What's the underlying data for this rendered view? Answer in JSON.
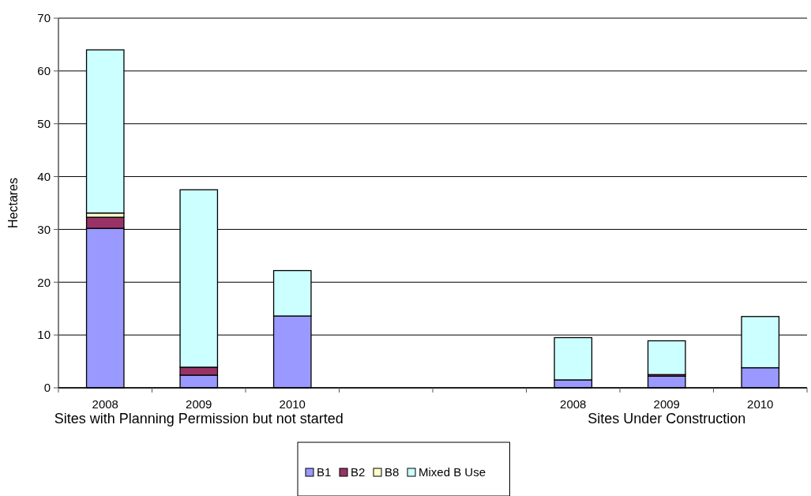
{
  "chart_data": {
    "type": "bar",
    "ylabel": "Hectares",
    "categories": [
      "2008",
      "2009",
      "2010",
      null,
      null,
      "2008",
      "2009",
      "2010"
    ],
    "series": [
      {
        "name": "B1",
        "color": "#9999ff",
        "values": [
          30.2,
          2.4,
          13.6,
          null,
          null,
          1.5,
          2.2,
          3.8
        ]
      },
      {
        "name": "B2",
        "color": "#993366",
        "values": [
          2.1,
          1.5,
          0,
          null,
          null,
          0,
          0.3,
          0
        ]
      },
      {
        "name": "B8",
        "color": "#ffffcc",
        "values": [
          0.8,
          0,
          0,
          null,
          null,
          0,
          0,
          0
        ]
      },
      {
        "name": "Mixed B Use",
        "color": "#ccffff",
        "values": [
          30.9,
          33.6,
          8.6,
          null,
          null,
          8.0,
          6.4,
          9.7
        ]
      }
    ],
    "stacked": true,
    "ylim": [
      0,
      70
    ],
    "yticks": [
      0,
      10,
      20,
      30,
      40,
      50,
      60,
      70
    ],
    "grid": "y",
    "legend": "bottom",
    "annotations": [
      "Sites with Planning Permission but not started",
      "Sites Under Construction"
    ]
  }
}
